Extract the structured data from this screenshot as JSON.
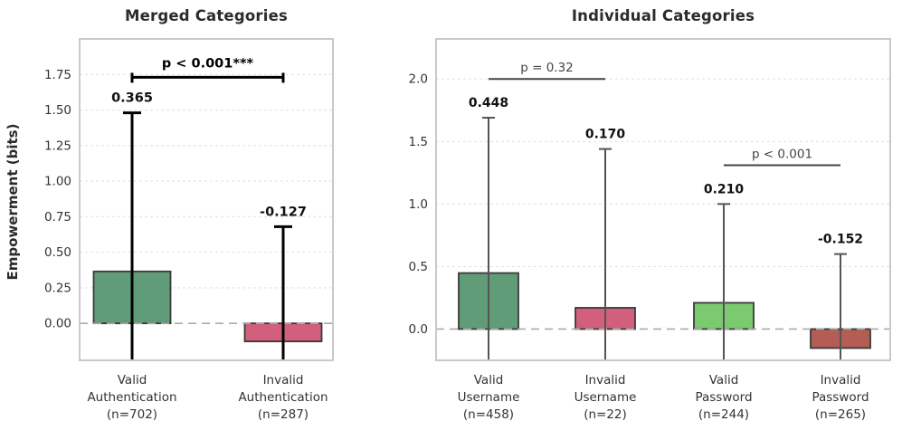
{
  "figure": {
    "background": "#ffffff",
    "text_color": "#2b2b2b"
  },
  "chart_data": [
    {
      "type": "bar",
      "title": "Merged Categories",
      "ylabel": "Empowerment (bits)",
      "ylim": [
        -0.26,
        2.0
      ],
      "yticks": [
        0.0,
        0.25,
        0.5,
        0.75,
        1.0,
        1.25,
        1.5,
        1.75
      ],
      "ytick_labels": [
        "0.00",
        "0.25",
        "0.50",
        "0.75",
        "1.00",
        "1.25",
        "1.50",
        "1.75"
      ],
      "grid": true,
      "zero_line": true,
      "categories": [
        [
          "Valid",
          "Authentication",
          "(n=702)"
        ],
        [
          "Invalid",
          "Authentication",
          "(n=287)"
        ]
      ],
      "values": [
        0.365,
        -0.127
      ],
      "value_labels": [
        "0.365",
        "-0.127"
      ],
      "error_top": [
        1.48,
        0.68
      ],
      "error_bottom_clipped": true,
      "bar_colors": [
        "#609c77",
        "#d25f7c"
      ],
      "bar_edge_color": "#3a3a3a",
      "error_color": "#000000",
      "annotations": [
        {
          "style": "bracket",
          "label": "p < 0.001***",
          "x1_cat": 0,
          "x2_cat": 1,
          "y": 1.73,
          "bold": true,
          "color": "#000000"
        }
      ]
    },
    {
      "type": "bar",
      "title": "Individual Categories",
      "ylabel": "",
      "ylim": [
        -0.25,
        2.32
      ],
      "yticks": [
        0.0,
        0.5,
        1.0,
        1.5,
        2.0
      ],
      "ytick_labels": [
        "0.0",
        "0.5",
        "1.0",
        "1.5",
        "2.0"
      ],
      "grid": true,
      "zero_line": true,
      "categories": [
        [
          "Valid",
          "Username",
          "(n=458)"
        ],
        [
          "Invalid",
          "Username",
          "(n=22)"
        ],
        [
          "Valid",
          "Password",
          "(n=244)"
        ],
        [
          "Invalid",
          "Password",
          "(n=265)"
        ]
      ],
      "values": [
        0.448,
        0.17,
        0.21,
        -0.152
      ],
      "value_labels": [
        "0.448",
        "0.170",
        "0.210",
        "-0.152"
      ],
      "error_top": [
        1.69,
        1.44,
        1.0,
        0.6
      ],
      "error_bottom_clipped": true,
      "bar_colors": [
        "#609c77",
        "#d25f7c",
        "#7cca70",
        "#b35d54"
      ],
      "bar_edge_color": "#3a3a3a",
      "error_color": "#555555",
      "annotations": [
        {
          "style": "line",
          "label": "p = 0.32",
          "x1_cat": 0,
          "x2_cat": 1,
          "y": 2.0,
          "bold": false,
          "color": "#444444"
        },
        {
          "style": "line",
          "label": "p < 0.001",
          "x1_cat": 2,
          "x2_cat": 3,
          "y": 1.31,
          "bold": false,
          "color": "#444444"
        }
      ]
    }
  ],
  "style": {
    "grid_color": "#e3e3e3",
    "zero_line_color": "#aaaaaa",
    "frame_color": "#c9c9c9",
    "tick_label_color": "#333333",
    "value_label_color": "#111111"
  }
}
